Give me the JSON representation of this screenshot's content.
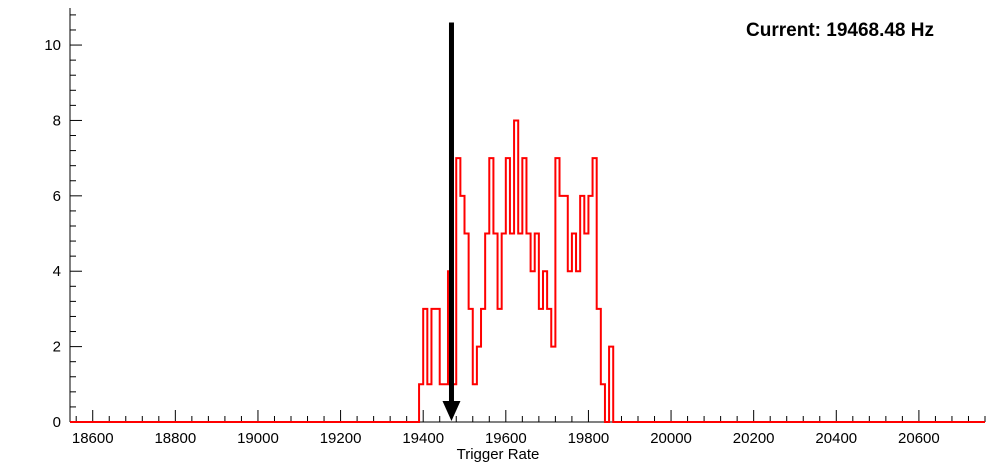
{
  "annotation": {
    "text": "Current: 19468.48 Hz"
  },
  "chart_data": {
    "type": "bar",
    "subtype": "step-histogram",
    "title": "",
    "xlabel": "Trigger Rate",
    "ylabel": "",
    "legend": "none",
    "grid": false,
    "xlim": [
      18545,
      20760
    ],
    "ylim": [
      0,
      10.93
    ],
    "x_major_ticks": [
      18600,
      18800,
      19000,
      19200,
      19400,
      19600,
      19800,
      20000,
      20200,
      20400,
      20600
    ],
    "x_minor_step": 40,
    "y_major_ticks": [
      0,
      2,
      4,
      6,
      8,
      10
    ],
    "y_minor_step": 0.4,
    "series_color": "#ff0000",
    "axis_color": "#000000",
    "bin_start": 19390,
    "bin_width": 10,
    "counts": [
      1,
      3,
      1,
      3,
      3,
      1,
      1,
      4,
      1,
      7,
      6,
      5,
      3,
      1,
      2,
      3,
      5,
      7,
      5,
      3,
      5,
      7,
      5,
      8,
      5,
      7,
      5,
      4,
      5,
      3,
      4,
      3,
      2,
      7,
      6,
      6,
      4,
      5,
      4,
      6,
      5,
      6,
      7,
      3,
      1,
      0,
      2,
      0
    ],
    "marker": {
      "type": "down-arrow",
      "x": 19468.48,
      "top_value": 10.6,
      "color": "#000000"
    }
  }
}
